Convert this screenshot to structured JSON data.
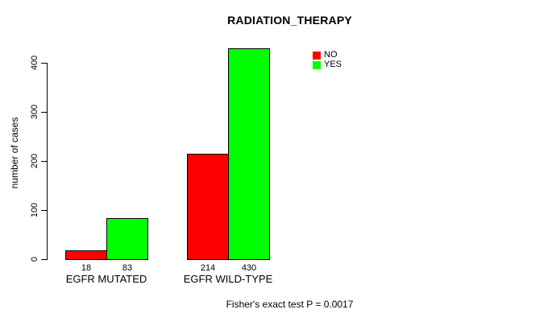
{
  "chart_data": {
    "type": "bar",
    "title": "RADIATION_THERAPY",
    "subtitle": "Fisher's exact test P = 0.0017",
    "ylabel": "number of cases",
    "xlabel": "",
    "categories": [
      "EGFR MUTATED",
      "EGFR WILD-TYPE"
    ],
    "series": [
      {
        "name": "NO",
        "color": "#FF0000",
        "values": [
          18,
          214
        ]
      },
      {
        "name": "YES",
        "color": "#00FF00",
        "values": [
          83,
          430
        ]
      }
    ],
    "yticks": [
      0,
      100,
      200,
      300,
      400
    ],
    "ylim": [
      0,
      440
    ],
    "grid": false,
    "legend_position": "top-right",
    "bar_border_color": "#000000",
    "background": "#FFFFFF"
  }
}
